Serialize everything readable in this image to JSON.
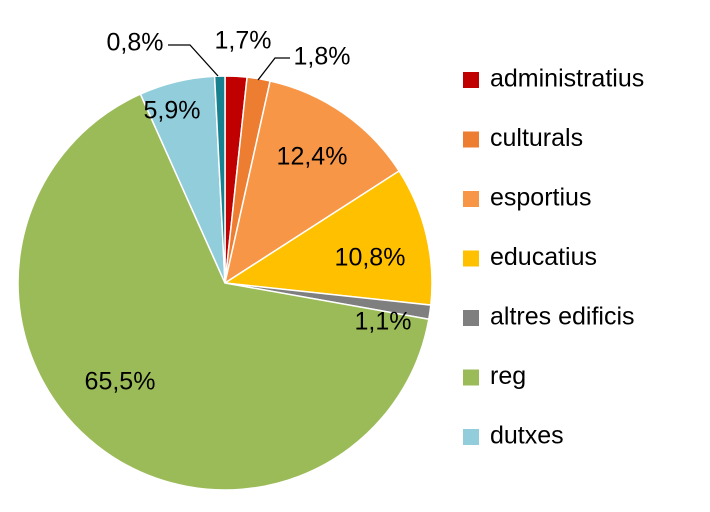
{
  "chart_data": {
    "type": "pie",
    "categories": [
      "administratius",
      "culturals",
      "esportius",
      "educatius",
      "altres edificis",
      "reg",
      "dutxes",
      null
    ],
    "values": [
      1.7,
      1.8,
      12.4,
      10.8,
      1.1,
      65.5,
      5.9,
      0.8
    ],
    "value_labels": [
      "1,7%",
      "1,8%",
      "12,4%",
      "10,8%",
      "1,1%",
      "65,5%",
      "5,9%",
      "0,8%"
    ],
    "colors": [
      "#c00000",
      "#ed7d31",
      "#f79646",
      "#ffc000",
      "#7f7f7f",
      "#9bbb59",
      "#92cddc",
      "#17818f"
    ],
    "legend": "right"
  }
}
